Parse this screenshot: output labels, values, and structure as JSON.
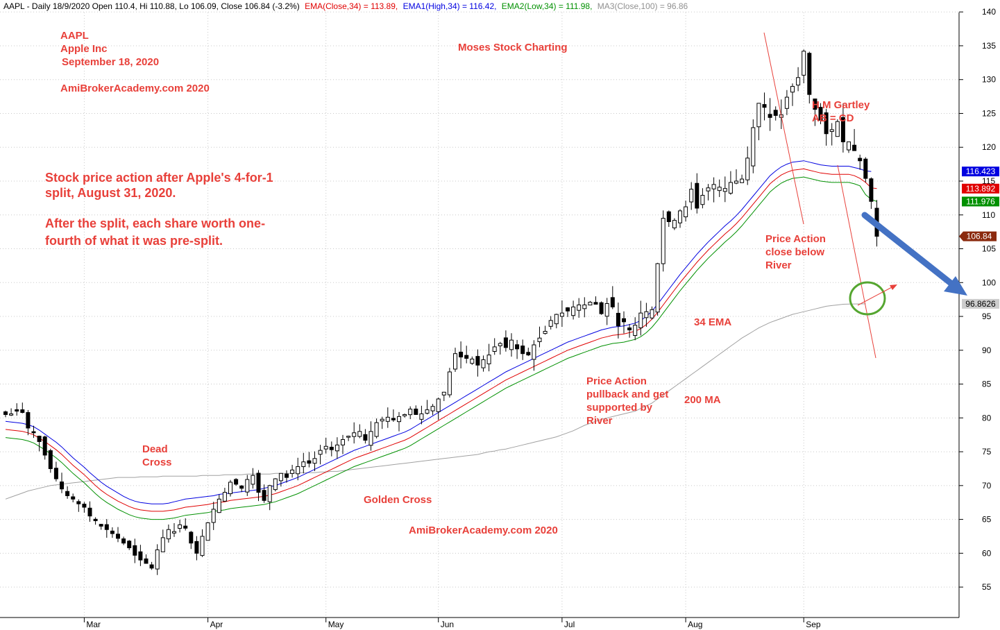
{
  "header": {
    "prefix": "AAPL - Daily 18/9/2020 Open 110.4, Hi 110.88, Lo 106.09, Close 106.84 (-3.2%)",
    "ema": "EMA(Close,34) = 113.89,",
    "ema1": "EMA1(High,34) = 116.42,",
    "ema2": "EMA2(Low,34) = 111.98,",
    "ma3": "MA3(Close,100) = 96.86"
  },
  "colors": {
    "ema": "#e00000",
    "ema1": "#0000e0",
    "ema2": "#009000",
    "ma3": "#a0a0a0",
    "annotation": "#e8403a",
    "arrow": "#4472c4",
    "circle": "#55a630"
  },
  "annotations": {
    "symbol": "AAPL",
    "company": "Apple Inc",
    "date": "September 18, 2020",
    "site_top": "AmiBrokerAcademy.com  2020",
    "brand": "Moses Stock Charting",
    "split1": "Stock price action after Apple's 4-for-1",
    "split2": "split, August 31, 2020.",
    "split3": "After the split, each share worth one-",
    "split4": "fourth of what it was pre-split.",
    "gartley1": "H M Gartley",
    "gartley2": "AB = CD",
    "close1": "Price Action",
    "close2": "close below",
    "close3": "River",
    "ema_label": "34 EMA",
    "ma_label": "200 MA",
    "pull1": "Price Action",
    "pull2": "pullback and get",
    "pull3": "supported by",
    "pull4": "River",
    "dead1": "Dead",
    "dead2": "Cross",
    "golden": "Golden Cross",
    "site_bottom": "AmiBrokerAcademy.com  2020"
  },
  "chart_data": {
    "type": "candlestick",
    "title": "AAPL - Daily 18/9/2020",
    "ylim": [
      50.5,
      143
    ],
    "yticks": [
      55,
      60,
      65,
      70,
      75,
      80,
      85,
      90,
      95,
      100,
      105,
      110,
      115,
      120,
      125,
      130,
      135,
      140
    ],
    "months": [
      {
        "label": "Mar",
        "index": 14
      },
      {
        "label": "Apr",
        "index": 36
      },
      {
        "label": "May",
        "index": 57
      },
      {
        "label": "Jun",
        "index": 77
      },
      {
        "label": "Jul",
        "index": 99
      },
      {
        "label": "Aug",
        "index": 121
      },
      {
        "label": "Sep",
        "index": 142
      }
    ],
    "last_values": {
      "ema1": {
        "label": "116.423",
        "value": 116.42
      },
      "ema": {
        "label": "113.892",
        "value": 113.89
      },
      "ema2": {
        "label": "111.976",
        "value": 111.98
      },
      "close": {
        "label": "106.84",
        "value": 106.84
      },
      "ma3": {
        "label": "96.8626",
        "value": 96.86
      }
    },
    "close": [
      80.5,
      80.6,
      81.0,
      80.8,
      78.5,
      77.8,
      76.5,
      74.5,
      72.5,
      71.0,
      69.5,
      68.5,
      68.0,
      67.3,
      66.8,
      65.5,
      64.8,
      64.0,
      63.5,
      62.9,
      62.2,
      61.5,
      60.8,
      59.7,
      59.0,
      58.5,
      57.8,
      60.5,
      62.3,
      63.5,
      63.2,
      64.2,
      63.7,
      61.5,
      60.0,
      62.5,
      64.5,
      66.5,
      68.0,
      69.0,
      70.5,
      70.2,
      69.6,
      70.9,
      71.5,
      69.0,
      67.8,
      70.0,
      71.0,
      71.8,
      71.2,
      72.3,
      72.8,
      73.5,
      73.3,
      74.0,
      75.2,
      75.8,
      75.3,
      76.0,
      76.8,
      77.3,
      77.8,
      78.0,
      76.7,
      78.0,
      79.3,
      79.8,
      80.1,
      79.7,
      80.2,
      80.5,
      81.3,
      80.5,
      80.6,
      81.2,
      81.7,
      82.8,
      83.8,
      86.8,
      89.5,
      89.0,
      88.8,
      88.7,
      87.8,
      88.6,
      89.3,
      90.5,
      91.0,
      90.4,
      91.5,
      90.2,
      89.5,
      89.3,
      90.8,
      91.8,
      92.8,
      94.4,
      95.3,
      95.5,
      95.8,
      96.4,
      96.7,
      96.7,
      97.1,
      96.8,
      95.4,
      96.9,
      96.4,
      93.6,
      94.2,
      93.0,
      93.7,
      95.5,
      95.7,
      96.0,
      102.8,
      109.5,
      109.0,
      109.2,
      110.6,
      111.2,
      113.8,
      111.0,
      112.9,
      114.0,
      114.5,
      114.1,
      113.9,
      114.8,
      115.0,
      115.3,
      118.4,
      122.9,
      126.5,
      125.9,
      124.4,
      124.7,
      124.8,
      127.4,
      129.0,
      130.3,
      134.2,
      127.8,
      125.6,
      124.0,
      122.0,
      122.6,
      123.8,
      120.8,
      120.8,
      119.5,
      118.0,
      115.4,
      112.0,
      106.84
    ],
    "ema34": [
      78.3,
      78.2,
      78.1,
      78.0,
      77.8,
      77.5,
      77.0,
      76.5,
      75.9,
      75.3,
      74.6,
      73.8,
      73.0,
      72.3,
      71.6,
      70.8,
      70.0,
      69.3,
      68.7,
      68.2,
      67.7,
      67.3,
      66.9,
      66.6,
      66.4,
      66.3,
      66.2,
      66.2,
      66.2,
      66.3,
      66.4,
      66.6,
      66.8,
      66.9,
      67.0,
      67.1,
      67.2,
      67.4,
      67.5,
      67.6,
      67.8,
      67.9,
      68.0,
      68.1,
      68.2,
      68.3,
      68.4,
      68.6,
      68.8,
      69.1,
      69.4,
      69.7,
      70.0,
      70.4,
      70.8,
      71.2,
      71.6,
      72.0,
      72.4,
      72.8,
      73.2,
      73.6,
      74.0,
      74.3,
      74.6,
      74.9,
      75.2,
      75.5,
      75.8,
      76.1,
      76.4,
      76.7,
      77.1,
      77.6,
      78.1,
      78.6,
      79.1,
      79.6,
      80.1,
      80.6,
      81.1,
      81.6,
      82.1,
      82.6,
      83.1,
      83.6,
      84.1,
      84.6,
      85.1,
      85.6,
      86.0,
      86.4,
      86.8,
      87.2,
      87.6,
      88.0,
      88.4,
      88.8,
      89.2,
      89.6,
      90.0,
      90.3,
      90.6,
      90.9,
      91.2,
      91.5,
      91.8,
      92.0,
      92.2,
      92.3,
      92.4,
      92.6,
      92.8,
      93.2,
      93.8,
      94.6,
      95.6,
      96.7,
      97.8,
      98.9,
      100.0,
      101.0,
      102.0,
      103.0,
      103.9,
      104.8,
      105.6,
      106.4,
      107.2,
      107.9,
      108.7,
      109.6,
      110.6,
      111.6,
      112.6,
      113.6,
      114.6,
      115.3,
      115.9,
      116.3,
      116.6,
      116.7,
      116.8,
      116.6,
      116.4,
      116.2,
      116.1,
      116.0,
      116.0,
      116.0,
      116.0,
      115.8,
      115.4,
      114.8,
      114.0,
      113.89
    ],
    "ema1": [
      79.5,
      79.4,
      79.3,
      79.2,
      79.0,
      78.7,
      78.2,
      77.6,
      77.0,
      76.4,
      75.7,
      74.9,
      74.1,
      73.4,
      72.7,
      71.9,
      71.2,
      70.5,
      69.9,
      69.4,
      68.9,
      68.4,
      68.0,
      67.7,
      67.5,
      67.4,
      67.3,
      67.3,
      67.3,
      67.4,
      67.6,
      67.8,
      68.0,
      68.1,
      68.2,
      68.3,
      68.4,
      68.5,
      68.7,
      68.8,
      68.9,
      69.0,
      69.1,
      69.2,
      69.3,
      69.4,
      69.6,
      69.8,
      70.0,
      70.3,
      70.6,
      70.9,
      71.2,
      71.6,
      72.0,
      72.4,
      72.8,
      73.2,
      73.6,
      74.0,
      74.4,
      74.8,
      75.2,
      75.5,
      75.8,
      76.1,
      76.4,
      76.7,
      77.0,
      77.3,
      77.6,
      77.9,
      78.3,
      78.8,
      79.3,
      79.8,
      80.3,
      80.8,
      81.3,
      81.8,
      82.3,
      82.8,
      83.3,
      83.8,
      84.3,
      84.8,
      85.3,
      85.8,
      86.3,
      86.8,
      87.2,
      87.6,
      88.0,
      88.4,
      88.8,
      89.2,
      89.6,
      90.0,
      90.4,
      90.8,
      91.2,
      91.5,
      91.8,
      92.1,
      92.4,
      92.7,
      93.0,
      93.2,
      93.4,
      93.5,
      93.6,
      93.8,
      94.0,
      94.4,
      95.0,
      95.8,
      96.8,
      97.9,
      99.0,
      100.1,
      101.2,
      102.2,
      103.2,
      104.2,
      105.1,
      106.0,
      106.8,
      107.6,
      108.4,
      109.1,
      109.9,
      110.8,
      111.8,
      112.8,
      113.8,
      114.8,
      115.8,
      116.5,
      117.1,
      117.5,
      117.8,
      117.9,
      118.0,
      117.8,
      117.6,
      117.4,
      117.3,
      117.2,
      117.2,
      117.2,
      117.2,
      117.0,
      116.8,
      116.5,
      116.42
    ],
    "ema2": [
      77.1,
      77.0,
      76.9,
      76.8,
      76.6,
      76.3,
      75.8,
      75.3,
      74.7,
      74.1,
      73.4,
      72.6,
      71.8,
      71.1,
      70.4,
      69.6,
      68.8,
      68.1,
      67.5,
      67.0,
      66.5,
      66.1,
      65.7,
      65.4,
      65.2,
      65.1,
      65.0,
      65.0,
      65.0,
      65.1,
      65.2,
      65.4,
      65.6,
      65.7,
      65.8,
      65.9,
      66.0,
      66.2,
      66.3,
      66.4,
      66.6,
      66.7,
      66.8,
      66.9,
      67.0,
      67.1,
      67.2,
      67.4,
      67.6,
      67.9,
      68.2,
      68.5,
      68.8,
      69.2,
      69.6,
      70.0,
      70.4,
      70.8,
      71.2,
      71.6,
      72.0,
      72.4,
      72.8,
      73.1,
      73.4,
      73.7,
      74.0,
      74.3,
      74.6,
      74.9,
      75.2,
      75.5,
      75.9,
      76.4,
      76.9,
      77.4,
      77.9,
      78.4,
      78.9,
      79.4,
      79.9,
      80.4,
      80.9,
      81.4,
      81.9,
      82.4,
      82.9,
      83.4,
      83.9,
      84.4,
      84.8,
      85.2,
      85.6,
      86.0,
      86.4,
      86.8,
      87.2,
      87.6,
      88.0,
      88.4,
      88.8,
      89.1,
      89.4,
      89.7,
      90.0,
      90.3,
      90.6,
      90.8,
      91.0,
      91.1,
      91.2,
      91.4,
      91.6,
      92.0,
      92.6,
      93.4,
      94.4,
      95.5,
      96.6,
      97.7,
      98.8,
      99.8,
      100.8,
      101.8,
      102.7,
      103.6,
      104.4,
      105.2,
      106.0,
      106.7,
      107.5,
      108.4,
      109.4,
      110.4,
      111.4,
      112.4,
      113.4,
      114.1,
      114.7,
      115.1,
      115.4,
      115.5,
      115.6,
      115.4,
      115.2,
      115.0,
      114.9,
      114.8,
      114.8,
      114.8,
      114.8,
      114.6,
      114.3,
      113.0,
      112.3,
      111.98
    ],
    "ma100": [
      68.0,
      68.3,
      68.6,
      68.9,
      69.2,
      69.4,
      69.6,
      69.8,
      70.0,
      70.1,
      70.2,
      70.3,
      70.4,
      70.5,
      70.6,
      70.7,
      70.8,
      70.9,
      71.0,
      71.1,
      71.2,
      71.2,
      71.2,
      71.2,
      71.3,
      71.3,
      71.3,
      71.3,
      71.4,
      71.4,
      71.4,
      71.4,
      71.4,
      71.4,
      71.4,
      71.5,
      71.5,
      71.5,
      71.5,
      71.6,
      71.6,
      71.6,
      71.6,
      71.7,
      71.7,
      71.7,
      71.7,
      71.7,
      71.8,
      71.8,
      71.8,
      71.8,
      71.9,
      71.9,
      71.9,
      71.9,
      72.0,
      72.0,
      72.1,
      72.1,
      72.2,
      72.3,
      72.4,
      72.5,
      72.6,
      72.7,
      72.8,
      72.9,
      73.0,
      73.1,
      73.2,
      73.3,
      73.4,
      73.5,
      73.6,
      73.7,
      73.8,
      73.9,
      74.0,
      74.1,
      74.2,
      74.3,
      74.4,
      74.5,
      74.6,
      74.8,
      75.0,
      75.1,
      75.3,
      75.4,
      75.6,
      75.8,
      76.0,
      76.2,
      76.4,
      76.6,
      76.8,
      77.0,
      77.2,
      77.5,
      77.8,
      78.1,
      78.5,
      78.9,
      79.2,
      79.5,
      79.8,
      80.0,
      80.2,
      80.4,
      80.6,
      80.8,
      81.0,
      81.4,
      81.8,
      82.2,
      82.8,
      83.4,
      84.0,
      84.6,
      85.2,
      85.8,
      86.4,
      87.0,
      87.6,
      88.2,
      88.8,
      89.4,
      90.0,
      90.6,
      91.2,
      91.8,
      92.3,
      92.8,
      93.3,
      93.7,
      94.1,
      94.4,
      94.7,
      95.0,
      95.3,
      95.5,
      95.7,
      95.9,
      96.1,
      96.3,
      96.5,
      96.6,
      96.7,
      96.8,
      96.82,
      96.84,
      96.85,
      96.86
    ]
  }
}
